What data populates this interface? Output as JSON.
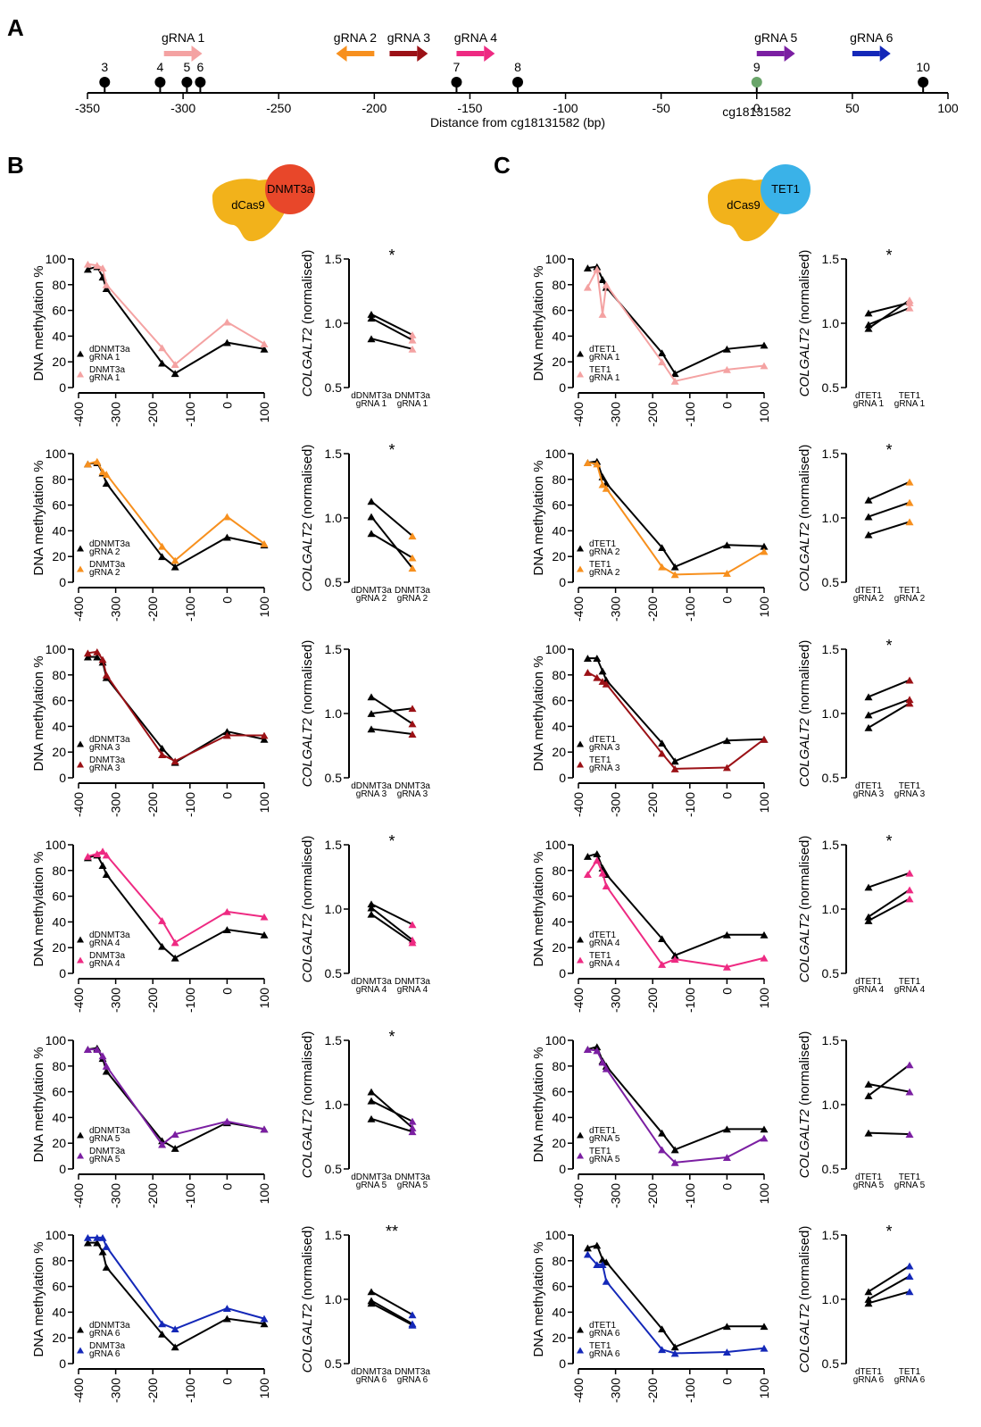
{
  "panels": {
    "A": "A",
    "B": "B",
    "C": "C"
  },
  "colors": {
    "black": "#000000",
    "grna1": "#f4a2a2",
    "grna2": "#f7901e",
    "grna3": "#9b1116",
    "grna4": "#ee2a82",
    "grna5": "#7b1fa2",
    "grna6": "#1428b8",
    "cpg_target": "#6aa56a",
    "dcas9": "#f2b21b",
    "dnmt3a": "#e8472a",
    "tet1": "#3ab2e8"
  },
  "proteins": {
    "dnmt3a_complex": {
      "dcas9": "dCas9",
      "effector": "DNMT3a"
    },
    "tet1_complex": {
      "dcas9": "dCas9",
      "effector": "TET1"
    }
  },
  "chart_data": [
    {
      "type": "line",
      "id": "A-genomic-map",
      "xlabel": "Distance from cg18131582 (bp)",
      "xlim": [
        -350,
        100
      ],
      "ticks": [
        -350,
        -300,
        -250,
        -200,
        -150,
        -100,
        -50,
        0,
        50,
        100
      ],
      "tick_labels": [
        "-350",
        "-300",
        "-250",
        "-200",
        "-150",
        "-100",
        "-50",
        "0",
        "50",
        "100"
      ],
      "cpg_sites": [
        {
          "label": "3",
          "x": -341
        },
        {
          "label": "4",
          "x": -312
        },
        {
          "label": "5",
          "x": -298
        },
        {
          "label": "6",
          "x": -291
        },
        {
          "label": "7",
          "x": -157
        },
        {
          "label": "8",
          "x": -125
        },
        {
          "label": "9",
          "x": 0,
          "target": true
        },
        {
          "label": "10",
          "x": 87
        }
      ],
      "target_label": "cg18131582",
      "guides": [
        {
          "label": "gRNA 1",
          "x_start": -310,
          "x_end": -290,
          "dir": "right",
          "color_key": "grna1"
        },
        {
          "label": "gRNA 2",
          "x_start": -200,
          "x_end": -220,
          "dir": "left",
          "color_key": "grna2"
        },
        {
          "label": "gRNA 3",
          "x_start": -192,
          "x_end": -172,
          "dir": "right",
          "color_key": "grna3"
        },
        {
          "label": "gRNA 4",
          "x_start": -157,
          "x_end": -137,
          "dir": "right",
          "color_key": "grna4"
        },
        {
          "label": "gRNA 5",
          "x_start": 0,
          "x_end": 20,
          "dir": "right",
          "color_key": "grna5"
        },
        {
          "label": "gRNA 6",
          "x_start": 50,
          "x_end": 70,
          "dir": "right",
          "color_key": "grna6"
        }
      ]
    },
    {
      "type": "line",
      "id": "B-methylation",
      "column": "B",
      "ylabel": "DNA methylation %",
      "xlim": [
        -400,
        100
      ],
      "ylim": [
        0,
        100
      ],
      "xticks": [
        -400,
        -300,
        -200,
        -100,
        0,
        100
      ],
      "xtick_labels": [
        "-400",
        "-300",
        "-200",
        "-100",
        "0",
        "100"
      ],
      "yticks": [
        0,
        20,
        40,
        60,
        80,
        100
      ],
      "x": [
        -375,
        -350,
        -335,
        -325,
        -175,
        -140,
        0,
        100
      ],
      "rows": [
        {
          "color_key": "grna1",
          "ctrl": {
            "name": "dDNMT3a\ngRNA 1",
            "values": [
              92,
              94,
              86,
              77,
              19,
              11,
              35,
              30
            ]
          },
          "active": {
            "name": "DNMT3a\ngRNA 1",
            "values": [
              96,
              95,
              93,
              80,
              31,
              18,
              51,
              34
            ]
          }
        },
        {
          "color_key": "grna2",
          "ctrl": {
            "name": "dDNMT3a\ngRNA 2",
            "values": [
              92,
              93,
              85,
              77,
              20,
              12,
              35,
              29
            ]
          },
          "active": {
            "name": "DNMT3a\ngRNA 2",
            "values": [
              92,
              94,
              86,
              84,
              28,
              17,
              51,
              30
            ]
          }
        },
        {
          "color_key": "grna3",
          "ctrl": {
            "name": "dDNMT3a\ngRNA 3",
            "values": [
              94,
              94,
              90,
              78,
              23,
              12,
              36,
              30
            ]
          },
          "active": {
            "name": "DNMT3a\ngRNA 3",
            "values": [
              97,
              98,
              92,
              80,
              18,
              13,
              33,
              33
            ]
          }
        },
        {
          "color_key": "grna4",
          "ctrl": {
            "name": "dDNMT3a\ngRNA 4",
            "values": [
              90,
              92,
              84,
              77,
              21,
              12,
              34,
              30
            ]
          },
          "active": {
            "name": "DNMT3a\ngRNA 4",
            "values": [
              91,
              93,
              95,
              92,
              41,
              24,
              48,
              44
            ]
          }
        },
        {
          "color_key": "grna5",
          "ctrl": {
            "name": "dDNMT3a\ngRNA 5",
            "values": [
              93,
              94,
              86,
              76,
              22,
              16,
              36,
              31
            ]
          },
          "active": {
            "name": "DNMT3a\ngRNA 5",
            "values": [
              93,
              93,
              88,
              80,
              19,
              27,
              37,
              31
            ]
          }
        },
        {
          "color_key": "grna6",
          "ctrl": {
            "name": "dDNMT3a\ngRNA 6",
            "values": [
              94,
              94,
              87,
              75,
              23,
              13,
              35,
              31
            ]
          },
          "active": {
            "name": "DNMT3a\ngRNA 6",
            "values": [
              98,
              98,
              98,
              91,
              31,
              27,
              43,
              35
            ]
          }
        }
      ]
    },
    {
      "type": "line",
      "id": "B-expression",
      "column": "B",
      "ylabel": "COLGALT2 (normalised)",
      "ylim": [
        0.5,
        1.5
      ],
      "yticks": [
        0.5,
        1.0,
        1.5
      ],
      "ytick_labels": [
        "0.5",
        "1.0",
        "1.5"
      ],
      "rows": [
        {
          "color_key": "grna1",
          "sig": "*",
          "cats": [
            "dDNMT3a\ngRNA 1",
            "DNMT3a\ngRNA 1"
          ],
          "pairs": [
            [
              1.07,
              0.91
            ],
            [
              1.04,
              0.87
            ],
            [
              0.88,
              0.8
            ]
          ]
        },
        {
          "color_key": "grna2",
          "sig": "*",
          "cats": [
            "dDNMT3a\ngRNA 2",
            "DNMT3a\ngRNA 2"
          ],
          "pairs": [
            [
              1.13,
              0.86
            ],
            [
              1.01,
              0.61
            ],
            [
              0.88,
              0.69
            ]
          ]
        },
        {
          "color_key": "grna3",
          "sig": "",
          "cats": [
            "dDNMT3a\ngRNA 3",
            "DNMT3a\ngRNA 3"
          ],
          "pairs": [
            [
              1.13,
              0.92
            ],
            [
              1.0,
              1.04
            ],
            [
              0.88,
              0.84
            ]
          ]
        },
        {
          "color_key": "grna4",
          "sig": "*",
          "cats": [
            "dDNMT3a\ngRNA 4",
            "DNMT3a\ngRNA 4"
          ],
          "pairs": [
            [
              1.04,
              0.88
            ],
            [
              1.01,
              0.76
            ],
            [
              0.96,
              0.74
            ]
          ]
        },
        {
          "color_key": "grna5",
          "sig": "*",
          "cats": [
            "dDNMT3a\ngRNA 5",
            "DNMT3a\ngRNA 5"
          ],
          "pairs": [
            [
              1.1,
              0.82
            ],
            [
              1.03,
              0.87
            ],
            [
              0.89,
              0.79
            ]
          ]
        },
        {
          "color_key": "grna6",
          "sig": "**",
          "cats": [
            "dDNMT3a\ngRNA 6",
            "DNMT3a\ngRNA 6"
          ],
          "pairs": [
            [
              1.06,
              0.88
            ],
            [
              0.99,
              0.81
            ],
            [
              0.97,
              0.8
            ]
          ]
        }
      ]
    },
    {
      "type": "line",
      "id": "C-methylation",
      "column": "C",
      "ylabel": "DNA methylation %",
      "xlim": [
        -400,
        100
      ],
      "ylim": [
        0,
        100
      ],
      "xticks": [
        -400,
        -300,
        -200,
        -100,
        0,
        100
      ],
      "xtick_labels": [
        "-400",
        "-300",
        "-200",
        "-100",
        "0",
        "100"
      ],
      "yticks": [
        0,
        20,
        40,
        60,
        80,
        100
      ],
      "x": [
        -375,
        -350,
        -335,
        -325,
        -175,
        -140,
        0,
        100
      ],
      "rows": [
        {
          "color_key": "grna1",
          "ctrl": {
            "name": "dTET1\ngRNA 1",
            "values": [
              93,
              94,
              84,
              78,
              27,
              11,
              30,
              33
            ]
          },
          "active": {
            "name": "TET1\ngRNA 1",
            "values": [
              78,
              92,
              57,
              80,
              20,
              5,
              14,
              17
            ]
          }
        },
        {
          "color_key": "grna2",
          "ctrl": {
            "name": "dTET1\ngRNA 2",
            "values": [
              93,
              94,
              82,
              77,
              27,
              12,
              29,
              28
            ]
          },
          "active": {
            "name": "TET1\ngRNA 2",
            "values": [
              93,
              92,
              76,
              73,
              12,
              6,
              7,
              24
            ]
          }
        },
        {
          "color_key": "grna3",
          "ctrl": {
            "name": "dTET1\ngRNA 3",
            "values": [
              93,
              93,
              83,
              76,
              27,
              13,
              29,
              30
            ]
          },
          "active": {
            "name": "TET1\ngRNA 3",
            "values": [
              82,
              78,
              75,
              73,
              19,
              7,
              8,
              30
            ]
          }
        },
        {
          "color_key": "grna4",
          "ctrl": {
            "name": "dTET1\ngRNA 4",
            "values": [
              91,
              93,
              82,
              77,
              27,
              14,
              30,
              30
            ]
          },
          "active": {
            "name": "TET1\ngRNA 4",
            "values": [
              77,
              88,
              78,
              68,
              7,
              11,
              5,
              12
            ]
          }
        },
        {
          "color_key": "grna5",
          "ctrl": {
            "name": "dTET1\ngRNA 5",
            "values": [
              93,
              95,
              84,
              80,
              28,
              15,
              31,
              31
            ]
          },
          "active": {
            "name": "TET1\ngRNA 5",
            "values": [
              93,
              92,
              83,
              78,
              15,
              5,
              9,
              24
            ]
          }
        },
        {
          "color_key": "grna6",
          "ctrl": {
            "name": "dTET1\ngRNA 6",
            "values": [
              90,
              92,
              81,
              79,
              27,
              13,
              29,
              29
            ]
          },
          "active": {
            "name": "TET1\ngRNA 6",
            "values": [
              85,
              77,
              77,
              64,
              11,
              8,
              9,
              12
            ]
          }
        }
      ]
    },
    {
      "type": "line",
      "id": "C-expression",
      "column": "C",
      "ylabel": "COLGALT2 (normalised)",
      "ylim": [
        0.5,
        1.5
      ],
      "yticks": [
        0.5,
        1.0,
        1.5
      ],
      "ytick_labels": [
        "0.5",
        "1.0",
        "1.5"
      ],
      "rows": [
        {
          "color_key": "grna1",
          "sig": "*",
          "cats": [
            "dTET1\ngRNA 1",
            "TET1\ngRNA 1"
          ],
          "pairs": [
            [
              1.08,
              1.16
            ],
            [
              0.99,
              1.12
            ],
            [
              0.96,
              1.18
            ]
          ]
        },
        {
          "color_key": "grna2",
          "sig": "*",
          "cats": [
            "dTET1\ngRNA 2",
            "TET1\ngRNA 2"
          ],
          "pairs": [
            [
              1.14,
              1.28
            ],
            [
              1.01,
              1.12
            ],
            [
              0.87,
              0.97
            ]
          ]
        },
        {
          "color_key": "grna3",
          "sig": "*",
          "cats": [
            "dTET1\ngRNA 3",
            "TET1\ngRNA 3"
          ],
          "pairs": [
            [
              1.13,
              1.26
            ],
            [
              0.99,
              1.11
            ],
            [
              0.89,
              1.08
            ]
          ]
        },
        {
          "color_key": "grna4",
          "sig": "*",
          "cats": [
            "dTET1\ngRNA 4",
            "TET1\ngRNA 4"
          ],
          "pairs": [
            [
              1.17,
              1.28
            ],
            [
              0.94,
              1.15
            ],
            [
              0.91,
              1.08
            ]
          ]
        },
        {
          "color_key": "grna5",
          "sig": "",
          "cats": [
            "dTET1\ngRNA 5",
            "TET1\ngRNA 5"
          ],
          "pairs": [
            [
              1.16,
              1.1
            ],
            [
              1.07,
              1.31
            ],
            [
              0.78,
              0.77
            ]
          ]
        },
        {
          "color_key": "grna6",
          "sig": "*",
          "cats": [
            "dTET1\ngRNA 6",
            "TET1\ngRNA 6"
          ],
          "pairs": [
            [
              1.06,
              1.26
            ],
            [
              1.0,
              1.18
            ],
            [
              0.97,
              1.06
            ]
          ]
        }
      ]
    }
  ]
}
